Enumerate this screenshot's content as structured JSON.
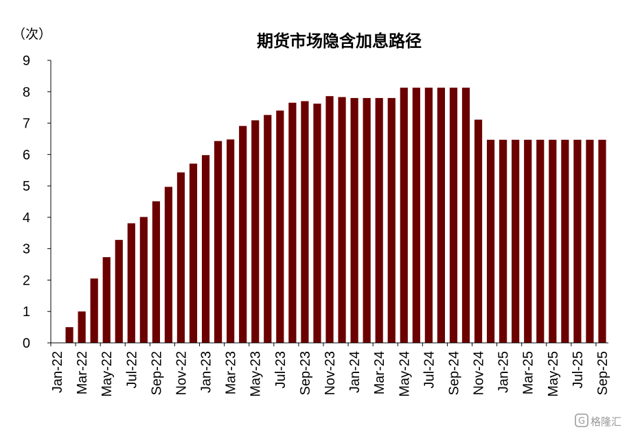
{
  "chart_data": {
    "type": "bar",
    "title": "期货市场隐含加息路径",
    "unit_label": "（次）",
    "ylim": [
      0,
      9
    ],
    "yticks": [
      0,
      1,
      2,
      3,
      4,
      5,
      6,
      7,
      8,
      9
    ],
    "x_tick_labels": [
      "Jan-22",
      "Mar-22",
      "May-22",
      "Jul-22",
      "Sep-22",
      "Nov-22",
      "Jan-23",
      "Mar-23",
      "May-23",
      "Jul-23",
      "Sep-23",
      "Nov-23",
      "Jan-24",
      "Mar-24",
      "May-24",
      "Jul-24",
      "Sep-24",
      "Nov-24",
      "Jan-25",
      "Mar-25",
      "May-25",
      "Jul-25",
      "Sep-25"
    ],
    "categories": [
      "Jan-22",
      "Feb-22",
      "Mar-22",
      "Apr-22",
      "May-22",
      "Jun-22",
      "Jul-22",
      "Aug-22",
      "Sep-22",
      "Oct-22",
      "Nov-22",
      "Dec-22",
      "Jan-23",
      "Feb-23",
      "Mar-23",
      "Apr-23",
      "May-23",
      "Jun-23",
      "Jul-23",
      "Aug-23",
      "Sep-23",
      "Oct-23",
      "Nov-23",
      "Dec-23",
      "Jan-24",
      "Feb-24",
      "Mar-24",
      "Apr-24",
      "May-24",
      "Jun-24",
      "Jul-24",
      "Aug-24",
      "Sep-24",
      "Oct-24",
      "Nov-24",
      "Dec-24",
      "Jan-25",
      "Feb-25",
      "Mar-25",
      "Apr-25",
      "May-25",
      "Jun-25",
      "Jul-25",
      "Aug-25",
      "Sep-25"
    ],
    "values": [
      0,
      0.5,
      1.0,
      2.05,
      2.73,
      3.28,
      3.81,
      4.01,
      4.51,
      4.97,
      5.43,
      5.71,
      5.98,
      6.43,
      6.48,
      6.91,
      7.09,
      7.26,
      7.4,
      7.65,
      7.7,
      7.62,
      7.86,
      7.83,
      7.8,
      7.8,
      7.8,
      7.8,
      8.13,
      8.13,
      8.13,
      8.13,
      8.13,
      8.13,
      7.11,
      6.47,
      6.47,
      6.47,
      6.47,
      6.47,
      6.47,
      6.47,
      6.47,
      6.47,
      6.47
    ],
    "bar_color": "#6b0000",
    "grid": false
  },
  "watermark": {
    "icon": "gelonghui-logo-icon",
    "text": "格隆汇"
  }
}
